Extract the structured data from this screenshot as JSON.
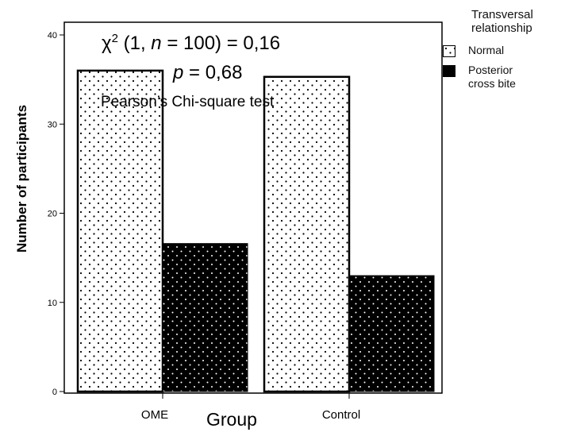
{
  "chart_data": {
    "type": "bar",
    "categories": [
      "OME",
      "Control"
    ],
    "series": [
      {
        "name": "Normal",
        "values": [
          36,
          35.3
        ],
        "color": "#ffffff",
        "pattern": "dotted-light"
      },
      {
        "name": "Posterior cross bite",
        "values": [
          16.6,
          13
        ],
        "color": "#000000",
        "pattern": "dotted-dark"
      }
    ],
    "xlabel": "Group",
    "ylabel": "Number of participants",
    "ylim": [
      0,
      40
    ],
    "yticks": [
      0,
      10,
      20,
      30,
      40
    ],
    "legend": {
      "title": "Transversal relationship",
      "placement": "top-right"
    },
    "grid": false,
    "annotations": {
      "chi_prefix": "χ",
      "chi_sup": "2",
      "chi_pre_n": " (1, ",
      "chi_n": "n",
      "chi_post_n": " = 100) = 0,16",
      "p_symbol": "p",
      "p_value": " = 0,68",
      "test": "Pearson’s Chi-square test"
    }
  }
}
